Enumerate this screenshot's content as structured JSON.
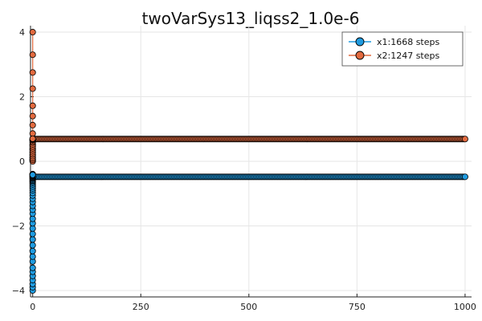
{
  "chart_data": {
    "type": "scatter",
    "title": "twoVarSys13_liqss2_1.0e-6",
    "xlabel": "",
    "ylabel": "",
    "xlim": [
      -5,
      1015
    ],
    "ylim": [
      -4.2,
      4.2
    ],
    "xticks": [
      0,
      250,
      500,
      750,
      1000
    ],
    "yticks": [
      -4,
      -2,
      0,
      2,
      4
    ],
    "xtick_labels": [
      "0",
      "250",
      "500",
      "750",
      "1000"
    ],
    "ytick_labels": [
      "−4",
      "−2",
      "0",
      "2",
      "4"
    ],
    "grid": true,
    "legend_position": "top-right",
    "series": [
      {
        "name": "x1:1668 steps",
        "color": "#1f9be0",
        "initial_x": [
          0,
          0,
          0,
          0,
          0,
          0,
          0,
          0,
          0,
          0,
          0,
          0,
          0,
          0,
          0,
          0,
          0,
          0,
          0,
          0,
          0,
          0,
          0,
          0,
          0,
          0,
          0,
          0,
          0,
          0,
          0,
          0,
          0,
          0,
          0,
          0,
          0,
          0,
          0,
          0,
          0,
          0,
          0,
          0
        ],
        "initial_y": [
          -4.0,
          -3.9,
          -3.8,
          -3.68,
          -3.55,
          -3.42,
          -3.3,
          -3.1,
          -2.95,
          -2.78,
          -2.6,
          -2.42,
          -2.25,
          -2.08,
          -1.92,
          -1.78,
          -1.62,
          -1.5,
          -1.38,
          -1.26,
          -1.16,
          -1.06,
          -0.98,
          -0.9,
          -0.84,
          -0.78,
          -0.72,
          -0.67,
          -0.63,
          -0.6,
          -0.57,
          -0.54,
          -0.52,
          -0.5,
          -0.48,
          -0.46,
          -0.44,
          -0.42,
          -0.41,
          -0.4,
          -0.4,
          -0.4,
          -0.41,
          -0.42
        ],
        "steady_x": [
          1,
          1000
        ],
        "steady_y": [
          -0.48,
          -0.48
        ],
        "end_point": [
          1000,
          -0.48
        ]
      },
      {
        "name": "x2:1247 steps",
        "color": "#e26a3f",
        "initial_x": [
          0,
          0,
          0,
          0,
          0,
          0,
          0,
          0,
          0,
          0,
          0,
          0,
          0,
          0,
          0,
          0,
          0,
          0,
          0,
          0,
          0,
          0,
          0,
          0,
          0,
          0,
          0,
          0,
          0,
          0,
          0,
          0
        ],
        "initial_y": [
          4.0,
          3.3,
          2.75,
          2.25,
          1.72,
          1.4,
          1.12,
          0.86,
          0.66,
          0.5,
          0.38,
          0.28,
          0.2,
          0.12,
          0.06,
          0.02,
          0.0,
          0.05,
          0.1,
          0.16,
          0.22,
          0.28,
          0.34,
          0.4,
          0.46,
          0.52,
          0.58,
          0.62,
          0.66,
          0.68,
          0.69,
          0.7
        ],
        "steady_x": [
          1,
          1000
        ],
        "steady_y": [
          0.69,
          0.69
        ],
        "end_point": [
          1000,
          0.69
        ]
      }
    ]
  }
}
